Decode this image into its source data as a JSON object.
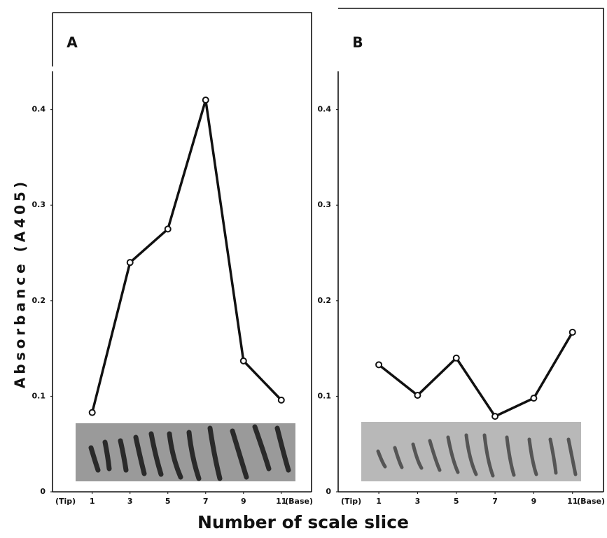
{
  "chart_data": [
    {
      "type": "line",
      "panel": "A",
      "x": [
        1,
        3,
        5,
        7,
        9,
        11
      ],
      "values": [
        0.083,
        0.24,
        0.275,
        0.41,
        0.137,
        0.096
      ],
      "color": "#111111",
      "xlim": [
        -1.1,
        12.6
      ],
      "xticks": [
        1,
        3,
        5,
        7,
        9,
        11
      ],
      "x_end_labels": [
        "(Tip)",
        "(Base)"
      ],
      "ylim": [
        0,
        0.44
      ],
      "yticks": [
        0,
        0.1,
        0.2,
        0.3,
        0.4
      ],
      "grid": false,
      "ylabel": "Absorbance (A405)",
      "xlabel": "Number of scale slice"
    },
    {
      "type": "line",
      "panel": "B",
      "x": [
        1,
        3,
        5,
        7,
        9,
        11
      ],
      "values": [
        0.133,
        0.101,
        0.14,
        0.079,
        0.098,
        0.167
      ],
      "color": "#111111",
      "xlim": [
        -1.1,
        12.6
      ],
      "xticks": [
        1,
        3,
        5,
        7,
        9,
        11
      ],
      "x_end_labels": [
        "(Tip)",
        "(Base)"
      ],
      "ylim": [
        0,
        0.44
      ],
      "yticks": [
        0,
        0.1,
        0.2,
        0.3,
        0.4
      ],
      "grid": false
    }
  ]
}
